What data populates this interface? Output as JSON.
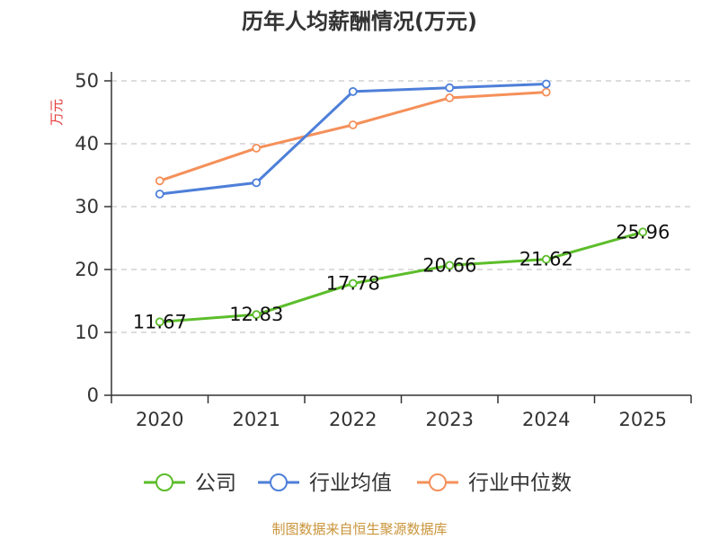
{
  "chart_data": {
    "type": "line",
    "title": "历年人均薪酬情况(万元)",
    "ylabel": "万元",
    "xlabel": "",
    "categories": [
      "2020",
      "2021",
      "2022",
      "2023",
      "2024",
      "2025"
    ],
    "ylim": [
      0,
      50
    ],
    "yticks": [
      0,
      10,
      20,
      30,
      40,
      50
    ],
    "grid": true,
    "legend_position": "bottom",
    "series": [
      {
        "name": "公司",
        "color": "#5cbd2a",
        "values": [
          11.67,
          12.83,
          17.78,
          20.66,
          21.62,
          25.96
        ],
        "labels": [
          "11.67",
          "12.83",
          "17.78",
          "20.66",
          "21.62",
          "25.96"
        ]
      },
      {
        "name": "行业均值",
        "color": "#4e7fd9",
        "values": [
          32.0,
          33.8,
          48.3,
          48.9,
          49.5,
          null
        ]
      },
      {
        "name": "行业中位数",
        "color": "#f5905a",
        "values": [
          34.1,
          39.3,
          43.0,
          47.3,
          48.2,
          null
        ]
      }
    ]
  },
  "ylabel_color": "#e63c3c",
  "source": {
    "text": "制图数据来自恒生聚源数据库",
    "color": "#c9943a"
  }
}
